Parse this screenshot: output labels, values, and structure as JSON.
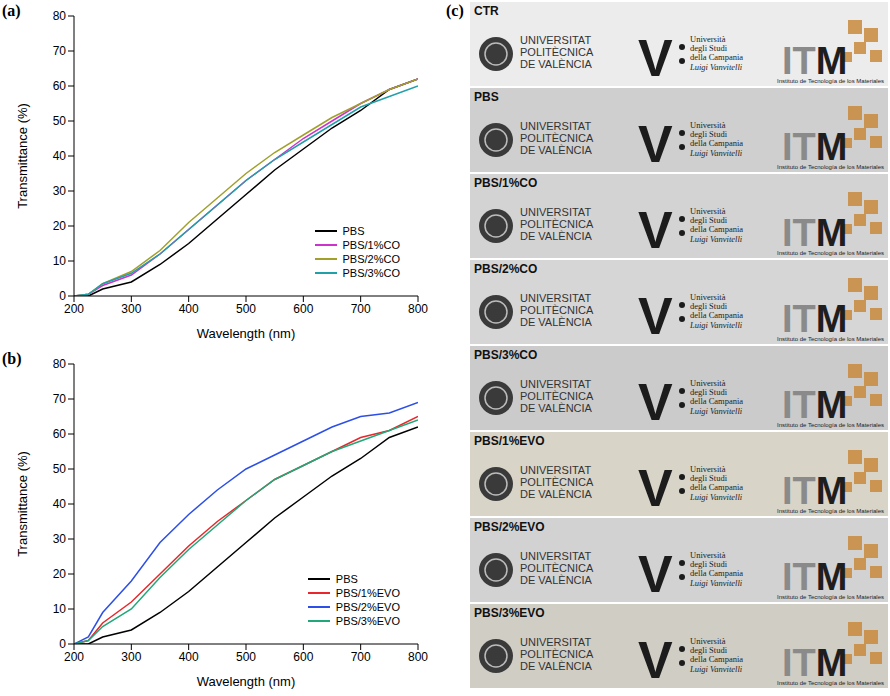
{
  "chart_data": [
    {
      "type": "line",
      "panel": "(a)",
      "x_label": "Wavelength (nm)",
      "y_label": "Transmittance (%)",
      "xlim": [
        200,
        800
      ],
      "xticks": [
        200,
        300,
        400,
        500,
        600,
        700,
        800
      ],
      "ylim": [
        0,
        80
      ],
      "yticks": [
        0,
        10,
        20,
        30,
        40,
        50,
        60,
        70,
        80
      ],
      "grid": false,
      "legend": "lower right",
      "x": [
        200,
        225,
        250,
        300,
        350,
        400,
        450,
        500,
        550,
        600,
        650,
        700,
        750,
        800
      ],
      "series": [
        {
          "name": "PBS",
          "color": "#000000",
          "values": [
            0,
            0,
            2,
            4,
            9,
            15,
            22,
            29,
            36,
            42,
            48,
            53,
            59,
            62
          ]
        },
        {
          "name": "PBS/1%CO",
          "color": "#cc33cc",
          "values": [
            0,
            0.5,
            3,
            6,
            12,
            19,
            26,
            33,
            39,
            45,
            50,
            55,
            59,
            62
          ]
        },
        {
          "name": "PBS/2%CO",
          "color": "#a0a02a",
          "values": [
            0,
            0.5,
            3.5,
            7,
            13,
            21,
            28,
            35,
            41,
            46,
            51,
            55,
            59,
            62
          ]
        },
        {
          "name": "PBS/3%CO",
          "color": "#20a0a8",
          "values": [
            0,
            0.5,
            3.5,
            6.5,
            12,
            19,
            26,
            33,
            39,
            44,
            49,
            54,
            57,
            60
          ]
        }
      ]
    },
    {
      "type": "line",
      "panel": "(b)",
      "x_label": "Wavelength (nm)",
      "y_label": "Transmittance (%)",
      "xlim": [
        200,
        800
      ],
      "xticks": [
        200,
        300,
        400,
        500,
        600,
        700,
        800
      ],
      "ylim": [
        0,
        80
      ],
      "yticks": [
        0,
        10,
        20,
        30,
        40,
        50,
        60,
        70,
        80
      ],
      "grid": false,
      "legend": "lower right",
      "x": [
        200,
        225,
        250,
        300,
        350,
        400,
        450,
        500,
        550,
        600,
        650,
        700,
        750,
        800
      ],
      "series": [
        {
          "name": "PBS",
          "color": "#000000",
          "values": [
            0,
            0,
            2,
            4,
            9,
            15,
            22,
            29,
            36,
            42,
            48,
            53,
            59,
            62
          ]
        },
        {
          "name": "PBS/1%EVO",
          "color": "#e8262b",
          "values": [
            0,
            1,
            6,
            12,
            20,
            28,
            35,
            41,
            47,
            51,
            55,
            59,
            61,
            65
          ]
        },
        {
          "name": "PBS/2%EVO",
          "color": "#2c4fe8",
          "values": [
            0,
            2,
            9,
            18,
            29,
            37,
            44,
            50,
            54,
            58,
            62,
            65,
            66,
            69
          ]
        },
        {
          "name": "PBS/3%EVO",
          "color": "#20a878",
          "values": [
            0,
            1,
            5,
            10,
            19,
            27,
            34,
            41,
            47,
            51,
            55,
            58,
            61,
            64
          ]
        }
      ]
    }
  ],
  "photo_panel": {
    "panel": "(c)",
    "samples": [
      "CTR",
      "PBS",
      "PBS/1%CO",
      "PBS/2%CO",
      "PBS/3%CO",
      "PBS/1%EVO",
      "PBS/2%EVO",
      "PBS/3%EVO"
    ],
    "upv": [
      "UNIVERSITAT",
      "POLITÈCNICA",
      "DE VALÈNCIA"
    ],
    "vanvitelli": {
      "letter": "V",
      "lines": [
        "Università",
        "degli Studi",
        "della Campania"
      ],
      "name": "Luigi Vanvitelli"
    },
    "itm": {
      "letters": [
        "IT",
        "M"
      ],
      "caption": "Instituto de Tecnología de los Materiales"
    }
  }
}
